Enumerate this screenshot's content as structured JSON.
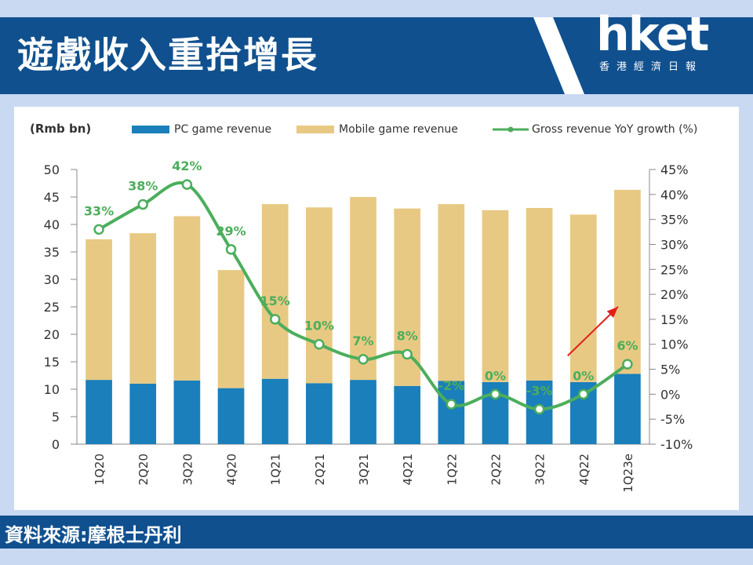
{
  "header": {
    "title": "遊戲收入重拾增長"
  },
  "logo": {
    "main": "hket",
    "sub": "香港經濟日報"
  },
  "source": {
    "text": "資料來源:摩根士丹利"
  },
  "chart_data": {
    "type": "bar",
    "stacked": true,
    "unit_label": "(Rmb bn)",
    "categories": [
      "1Q20",
      "2Q20",
      "3Q20",
      "4Q20",
      "1Q21",
      "2Q21",
      "3Q21",
      "4Q21",
      "1Q22",
      "2Q22",
      "3Q22",
      "4Q22",
      "1Q23e"
    ],
    "series": [
      {
        "name": "PC game revenue",
        "type": "bar",
        "axis": "left",
        "color": "#1a7fba",
        "values": [
          11.7,
          11.0,
          11.6,
          10.2,
          11.9,
          11.1,
          11.7,
          10.6,
          11.5,
          11.3,
          11.6,
          11.3,
          12.8
        ]
      },
      {
        "name": "Mobile game revenue",
        "type": "bar",
        "axis": "left",
        "color": "#e8c983",
        "values": [
          25.6,
          27.4,
          29.9,
          21.5,
          31.8,
          32.0,
          33.3,
          32.3,
          32.2,
          31.3,
          31.4,
          30.5,
          33.5
        ]
      },
      {
        "name": "Gross revenue YoY growth (%)",
        "type": "line",
        "axis": "right",
        "color": "#4cae5c",
        "values": [
          33,
          38,
          42,
          29,
          15,
          10,
          7,
          8,
          -2,
          0,
          -3,
          0,
          6
        ],
        "labels": [
          "33%",
          "38%",
          "42%",
          "29%",
          "15%",
          "10%",
          "7%",
          "8%",
          "-2%",
          "0%",
          "-3%",
          "0%",
          "6%"
        ]
      }
    ],
    "ylim": [
      0,
      50
    ],
    "yticks": [
      "50",
      "45",
      "40",
      "35",
      "30",
      "25",
      "20",
      "15",
      "10",
      "5",
      "0"
    ],
    "y2lim": [
      -10,
      45
    ],
    "y2ticks": [
      "45%",
      "40%",
      "35%",
      "30%",
      "25%",
      "20%",
      "15%",
      "10%",
      "5%",
      "0%",
      "-5%",
      "-10%"
    ],
    "legend_position": "top",
    "annotation": {
      "type": "arrow",
      "color": "#e0201b"
    }
  }
}
